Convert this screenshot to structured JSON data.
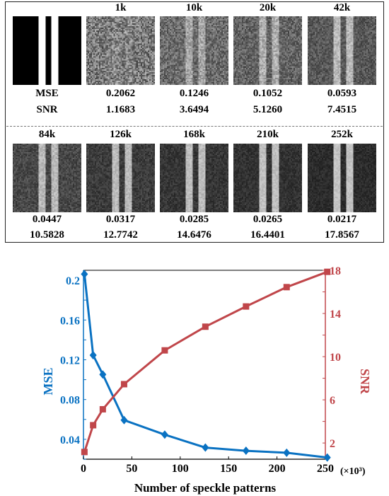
{
  "panel": {
    "row_label_mse": "MSE",
    "row_label_snr": "SNR",
    "top_row": [
      {
        "label": "1k",
        "mse": "0.2062",
        "snr": "1.1683",
        "bg_gray": 122,
        "noise": 58,
        "stripe_boost": 14
      },
      {
        "label": "10k",
        "mse": "0.1246",
        "snr": "3.6494",
        "bg_gray": 108,
        "noise": 40,
        "stripe_boost": 58
      },
      {
        "label": "20k",
        "mse": "0.1052",
        "snr": "5.1260",
        "bg_gray": 100,
        "noise": 36,
        "stripe_boost": 74
      },
      {
        "label": "42k",
        "mse": "0.0593",
        "snr": "7.4515",
        "bg_gray": 88,
        "noise": 28,
        "stripe_boost": 96
      }
    ],
    "bottom_row": [
      {
        "label": "84k",
        "mse": "0.0447",
        "snr": "10.5828",
        "bg_gray": 72,
        "noise": 24,
        "stripe_boost": 112
      },
      {
        "label": "126k",
        "mse": "0.0317",
        "snr": "12.7742",
        "bg_gray": 60,
        "noise": 20,
        "stripe_boost": 126
      },
      {
        "label": "168k",
        "mse": "0.0285",
        "snr": "14.6476",
        "bg_gray": 54,
        "noise": 18,
        "stripe_boost": 134
      },
      {
        "label": "210k",
        "mse": "0.0265",
        "snr": "16.4401",
        "bg_gray": 50,
        "noise": 16,
        "stripe_boost": 142
      },
      {
        "label": "252k",
        "mse": "0.0217",
        "snr": "17.8567",
        "bg_gray": 44,
        "noise": 14,
        "stripe_boost": 150
      }
    ]
  },
  "chart_data": {
    "type": "line",
    "xlabel": "Number of speckle patterns",
    "x_unit": "(×10³)",
    "xlim": [
      0,
      250
    ],
    "xticks": [
      0,
      50,
      100,
      150,
      200,
      250
    ],
    "x": [
      1,
      10,
      20,
      42,
      84,
      126,
      168,
      210,
      252
    ],
    "series": [
      {
        "name": "MSE",
        "axis": "left",
        "color": "#0a72c2",
        "marker": "diamond",
        "values": [
          0.2062,
          0.1246,
          0.1052,
          0.0593,
          0.0447,
          0.0317,
          0.0285,
          0.0265,
          0.0217
        ]
      },
      {
        "name": "SNR",
        "axis": "right",
        "color": "#c0464a",
        "marker": "square",
        "values": [
          1.1683,
          3.6494,
          5.126,
          7.4515,
          10.5828,
          12.7742,
          14.6476,
          16.4401,
          17.8567
        ]
      }
    ],
    "left_axis": {
      "label": "MSE",
      "ylim": [
        0.02,
        0.21
      ],
      "ticks": [
        "0.04",
        "0.08",
        "0.12",
        "0.16",
        "0.2"
      ]
    },
    "right_axis": {
      "label": "SNR",
      "ylim": [
        0.5,
        18
      ],
      "ticks": [
        "2",
        "6",
        "10",
        "14",
        "18"
      ]
    },
    "grid": false
  }
}
